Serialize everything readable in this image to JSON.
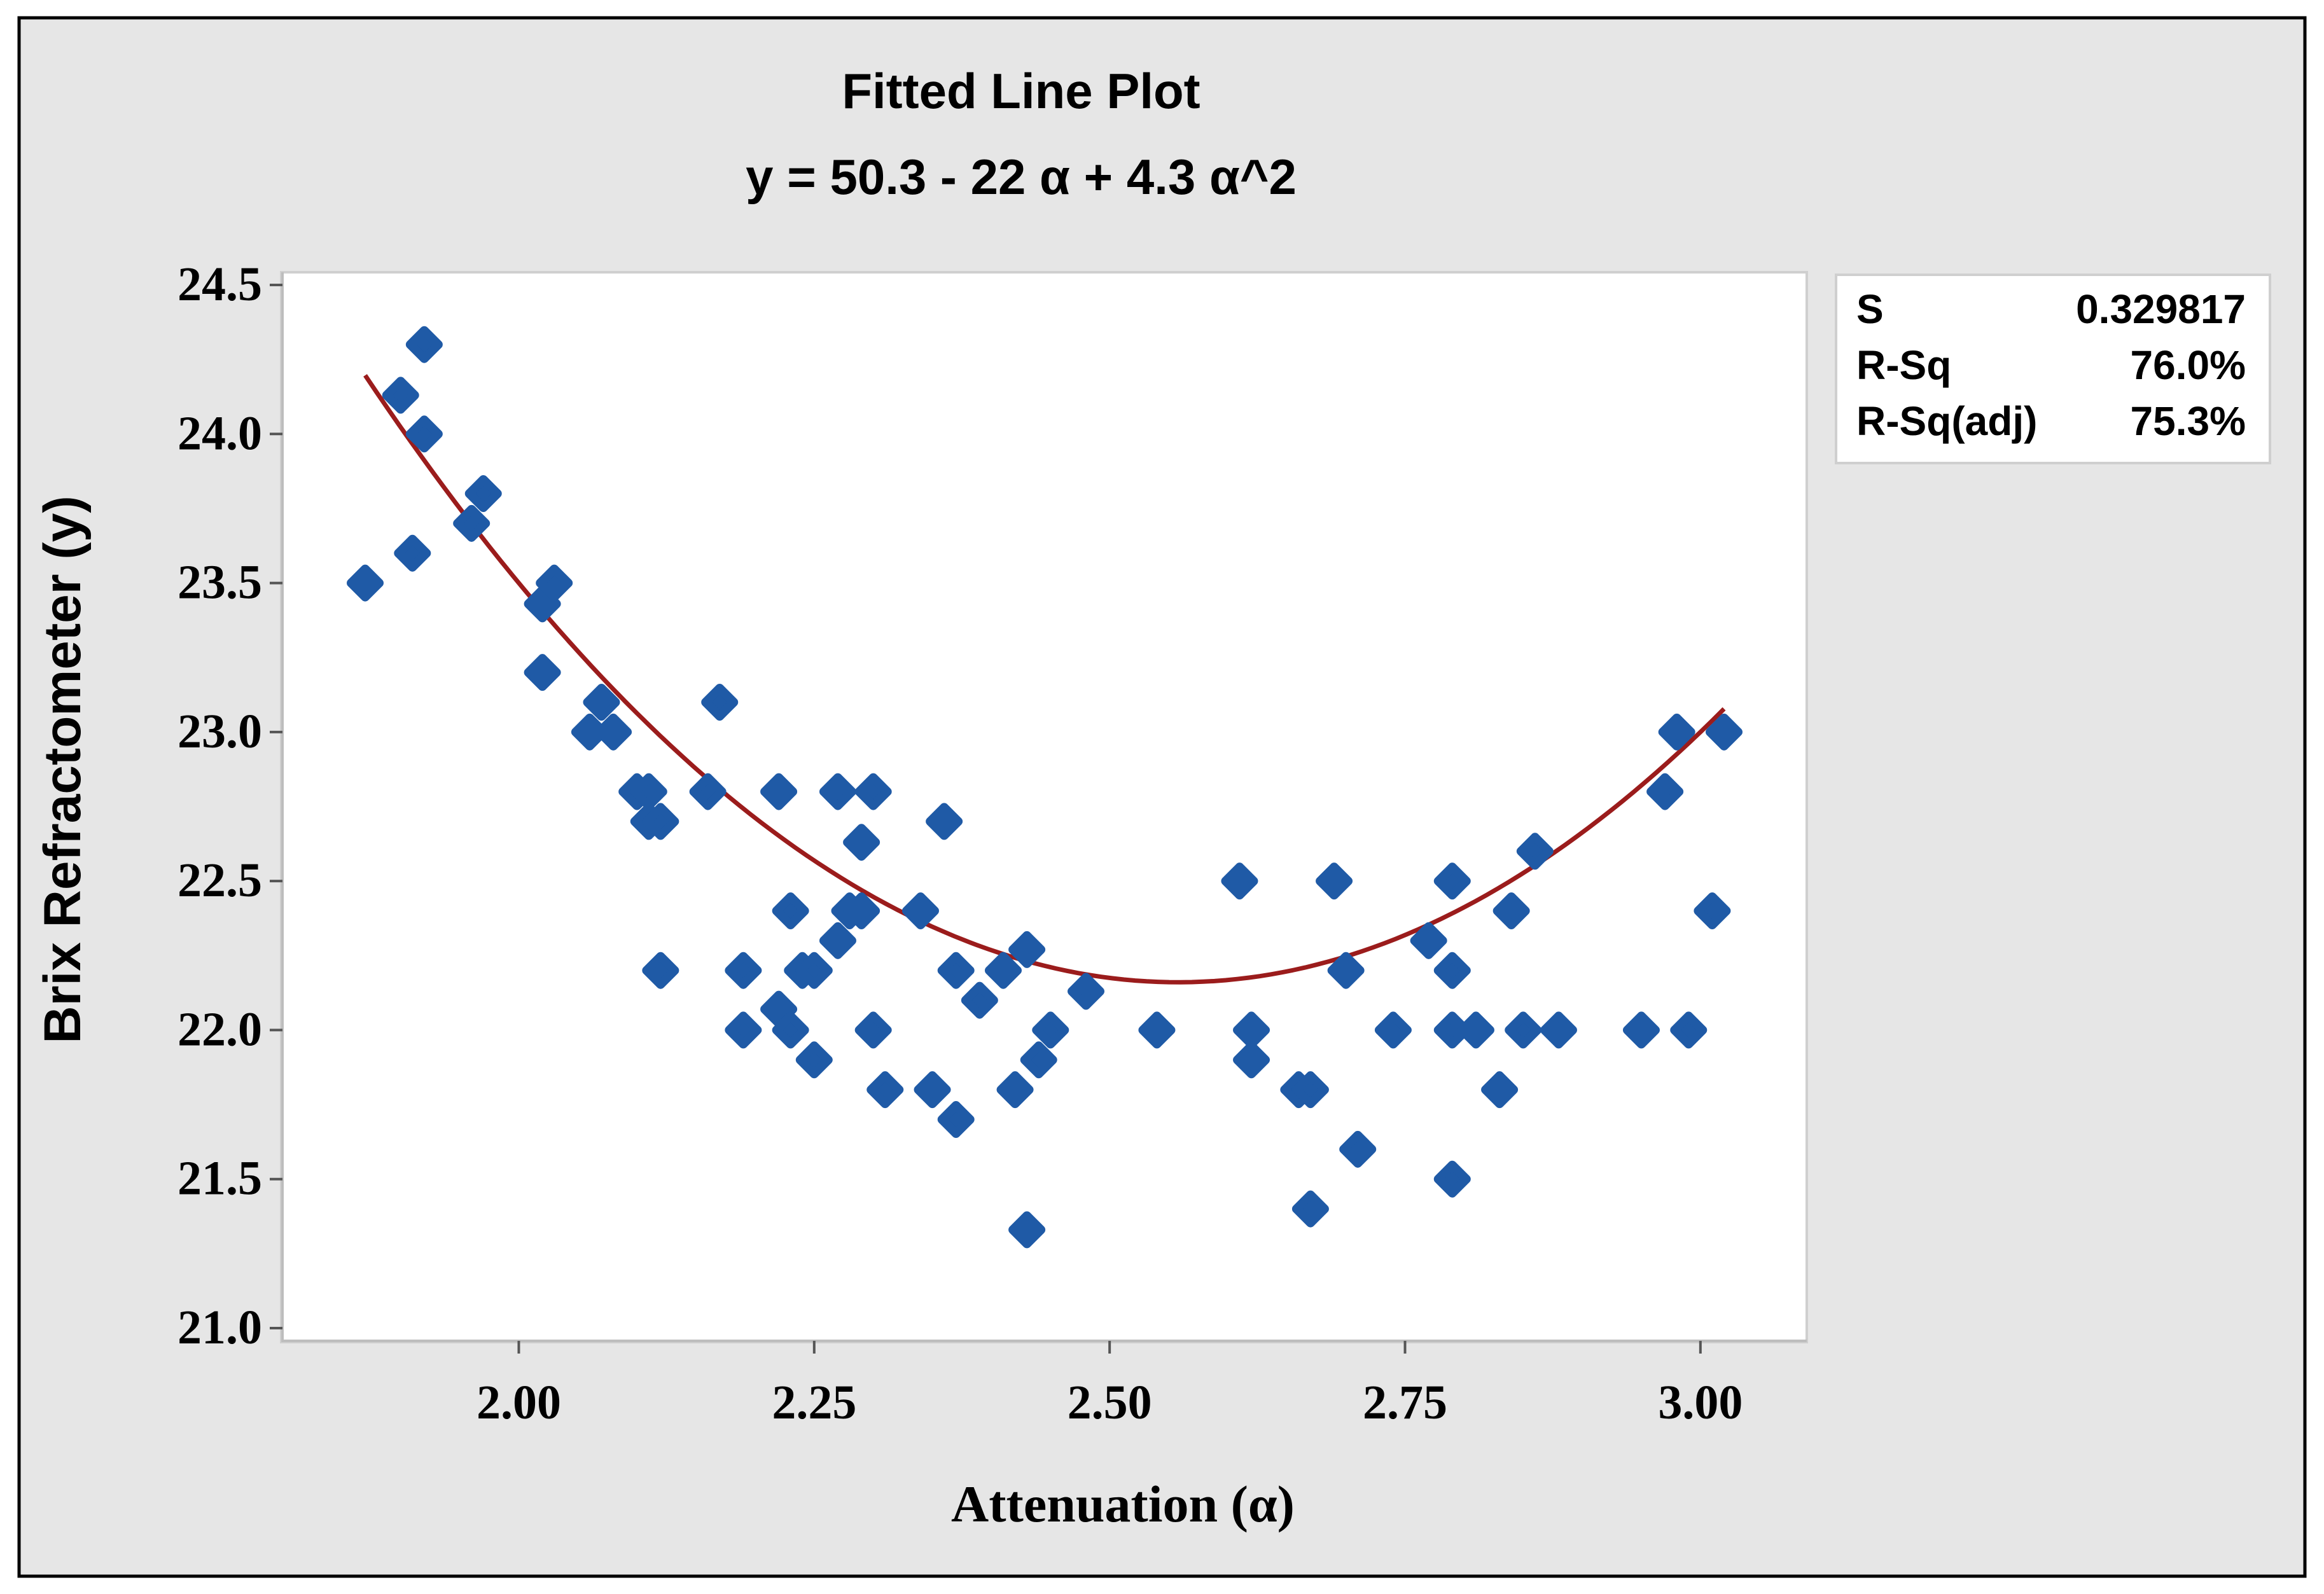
{
  "chart_data": {
    "type": "scatter",
    "title": "Fitted Line Plot",
    "subtitle": "y = 50.3 - 22 α + 4.3 α^2",
    "xlabel": "Attenuation (α)",
    "ylabel": "Brix Refractometer (y)",
    "xlim": [
      1.8,
      3.09
    ],
    "ylim": [
      21.0,
      24.5
    ],
    "x_ticks": [
      2.0,
      2.25,
      2.5,
      2.75,
      3.0
    ],
    "x_tick_labels": [
      "2.00",
      "2.25",
      "2.50",
      "2.75",
      "3.00"
    ],
    "y_ticks": [
      21.0,
      21.5,
      22.0,
      22.5,
      23.0,
      23.5,
      24.0,
      24.5
    ],
    "y_tick_labels": [
      "21.0",
      "21.5",
      "22.0",
      "22.5",
      "23.0",
      "23.5",
      "24.0",
      "24.5"
    ],
    "grid": false,
    "fit": {
      "type": "quadratic",
      "coefficients": [
        50.3,
        -22,
        4.3
      ],
      "x_range": [
        1.87,
        3.02
      ],
      "color": "#9b1c1c"
    },
    "point_color": "#1f5aa6",
    "points": [
      {
        "x": 1.87,
        "y": 23.5
      },
      {
        "x": 1.9,
        "y": 24.13
      },
      {
        "x": 1.91,
        "y": 23.6
      },
      {
        "x": 1.92,
        "y": 24.3
      },
      {
        "x": 1.92,
        "y": 24.0
      },
      {
        "x": 1.96,
        "y": 23.7
      },
      {
        "x": 1.97,
        "y": 23.8
      },
      {
        "x": 2.02,
        "y": 23.43
      },
      {
        "x": 2.03,
        "y": 23.5
      },
      {
        "x": 2.02,
        "y": 23.2
      },
      {
        "x": 2.07,
        "y": 23.1
      },
      {
        "x": 2.06,
        "y": 23.0
      },
      {
        "x": 2.08,
        "y": 23.0
      },
      {
        "x": 2.1,
        "y": 22.8
      },
      {
        "x": 2.11,
        "y": 22.8
      },
      {
        "x": 2.11,
        "y": 22.7
      },
      {
        "x": 2.12,
        "y": 22.7
      },
      {
        "x": 2.12,
        "y": 22.2
      },
      {
        "x": 2.16,
        "y": 22.8
      },
      {
        "x": 2.17,
        "y": 23.1
      },
      {
        "x": 2.19,
        "y": 22.2
      },
      {
        "x": 2.19,
        "y": 22.0
      },
      {
        "x": 2.22,
        "y": 22.8
      },
      {
        "x": 2.22,
        "y": 22.07
      },
      {
        "x": 2.23,
        "y": 22.4
      },
      {
        "x": 2.23,
        "y": 22.0
      },
      {
        "x": 2.24,
        "y": 22.2
      },
      {
        "x": 2.25,
        "y": 22.2
      },
      {
        "x": 2.25,
        "y": 21.9
      },
      {
        "x": 2.27,
        "y": 22.8
      },
      {
        "x": 2.27,
        "y": 22.3
      },
      {
        "x": 2.28,
        "y": 22.4
      },
      {
        "x": 2.29,
        "y": 22.4
      },
      {
        "x": 2.29,
        "y": 22.63
      },
      {
        "x": 2.3,
        "y": 22.8
      },
      {
        "x": 2.3,
        "y": 22.0
      },
      {
        "x": 2.31,
        "y": 21.8
      },
      {
        "x": 2.34,
        "y": 22.4
      },
      {
        "x": 2.35,
        "y": 21.8
      },
      {
        "x": 2.36,
        "y": 22.7
      },
      {
        "x": 2.37,
        "y": 22.2
      },
      {
        "x": 2.37,
        "y": 21.7
      },
      {
        "x": 2.39,
        "y": 22.1
      },
      {
        "x": 2.41,
        "y": 22.2
      },
      {
        "x": 2.42,
        "y": 21.8
      },
      {
        "x": 2.43,
        "y": 22.27
      },
      {
        "x": 2.43,
        "y": 21.33
      },
      {
        "x": 2.44,
        "y": 21.9
      },
      {
        "x": 2.45,
        "y": 22.0
      },
      {
        "x": 2.48,
        "y": 22.13
      },
      {
        "x": 2.54,
        "y": 22.0
      },
      {
        "x": 2.61,
        "y": 22.5
      },
      {
        "x": 2.62,
        "y": 22.0
      },
      {
        "x": 2.62,
        "y": 21.9
      },
      {
        "x": 2.66,
        "y": 21.8
      },
      {
        "x": 2.67,
        "y": 21.8
      },
      {
        "x": 2.67,
        "y": 21.4
      },
      {
        "x": 2.69,
        "y": 22.5
      },
      {
        "x": 2.7,
        "y": 22.2
      },
      {
        "x": 2.71,
        "y": 21.6
      },
      {
        "x": 2.74,
        "y": 22.0
      },
      {
        "x": 2.77,
        "y": 22.3
      },
      {
        "x": 2.79,
        "y": 22.5
      },
      {
        "x": 2.79,
        "y": 22.2
      },
      {
        "x": 2.79,
        "y": 22.0
      },
      {
        "x": 2.79,
        "y": 21.5
      },
      {
        "x": 2.81,
        "y": 22.0
      },
      {
        "x": 2.83,
        "y": 21.8
      },
      {
        "x": 2.84,
        "y": 22.4
      },
      {
        "x": 2.85,
        "y": 22.0
      },
      {
        "x": 2.86,
        "y": 22.6
      },
      {
        "x": 2.88,
        "y": 22.0
      },
      {
        "x": 2.95,
        "y": 22.0
      },
      {
        "x": 2.97,
        "y": 22.8
      },
      {
        "x": 2.98,
        "y": 23.0
      },
      {
        "x": 2.99,
        "y": 22.0
      },
      {
        "x": 3.01,
        "y": 22.4
      },
      {
        "x": 3.02,
        "y": 23.0
      }
    ],
    "stats": [
      {
        "label": "S",
        "value": "0.329817"
      },
      {
        "label": "R-Sq",
        "value": "76.0%"
      },
      {
        "label": "R-Sq(adj)",
        "value": "75.3%"
      }
    ]
  }
}
